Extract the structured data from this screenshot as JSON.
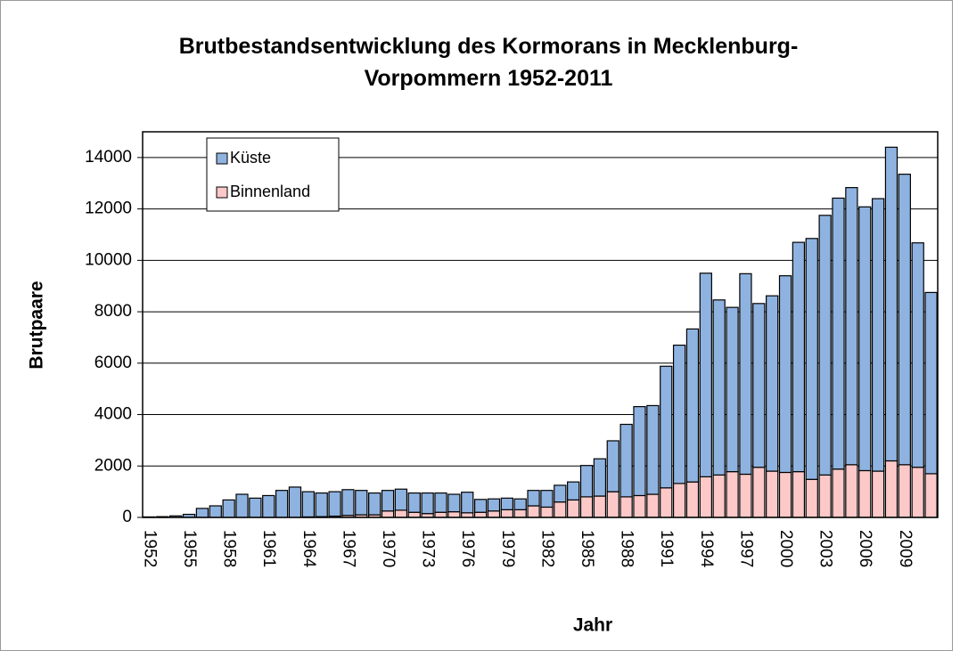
{
  "chart_data": {
    "type": "stacked_bar",
    "title": [
      "Brutbestandsentwicklung des Kormorans in Mecklenburg-",
      "Vorpommern 1952-2011"
    ],
    "y_label": "Brutpaare",
    "x_label": "Jahr",
    "categories": [
      "1952",
      null,
      null,
      "1955",
      null,
      null,
      "1958",
      null,
      null,
      "1961",
      null,
      null,
      "1964",
      null,
      null,
      "1967",
      null,
      null,
      "1970",
      null,
      null,
      "1973",
      null,
      null,
      "1976",
      null,
      null,
      "1979",
      null,
      null,
      "1982",
      null,
      null,
      "1985",
      null,
      null,
      "1988",
      null,
      null,
      "1991",
      null,
      null,
      "1994",
      null,
      null,
      "1997",
      null,
      null,
      "2000",
      null,
      null,
      "2003",
      null,
      null,
      "2006",
      null,
      null,
      "2009",
      null,
      null
    ],
    "series": [
      {
        "name": "Binnenland",
        "color": "#fcc8c8",
        "values": [
          0,
          0,
          0,
          0,
          0,
          0,
          0,
          0,
          0,
          0,
          0,
          0,
          20,
          30,
          50,
          80,
          100,
          100,
          250,
          280,
          200,
          150,
          200,
          220,
          180,
          200,
          250,
          300,
          300,
          450,
          400,
          600,
          680,
          800,
          830,
          1000,
          800,
          850,
          900,
          1150,
          1320,
          1380,
          1580,
          1650,
          1780,
          1680,
          1950,
          1800,
          1750,
          1780,
          1480,
          1650,
          1880,
          2050,
          1820,
          1800,
          2200,
          2050,
          1950,
          1700
        ]
      },
      {
        "name": "Küste",
        "color": "#8fb3e0",
        "values": [
          20,
          30,
          60,
          120,
          350,
          450,
          680,
          900,
          750,
          850,
          1050,
          1180,
          980,
          920,
          950,
          1000,
          950,
          850,
          800,
          820,
          750,
          800,
          750,
          680,
          800,
          500,
          470,
          450,
          420,
          600,
          650,
          650,
          700,
          1220,
          1450,
          1980,
          2820,
          3460,
          3450,
          4730,
          5380,
          5950,
          7920,
          6810,
          6390,
          7800,
          6370,
          6820,
          7650,
          8920,
          9370,
          10100,
          10540,
          10780,
          10260,
          10600,
          12200,
          11300,
          8730,
          7050
        ]
      }
    ],
    "ylim": [
      0,
      15000
    ],
    "yticks": [
      0,
      2000,
      4000,
      6000,
      8000,
      10000,
      12000,
      14000
    ],
    "grid": true
  }
}
